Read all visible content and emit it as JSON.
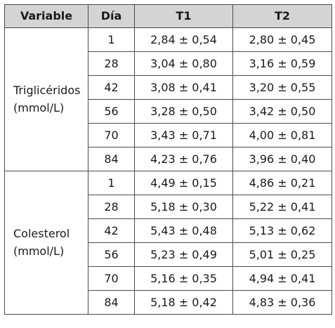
{
  "table": {
    "headers": [
      "Variable",
      "Día",
      "T1",
      "T2"
    ],
    "groups": [
      {
        "name": "Triglicéridos",
        "unit": "(mmol/L)",
        "rows": [
          {
            "dia": "1",
            "t1": "2,84 ± 0,54",
            "t2": "2,80 ± 0,45"
          },
          {
            "dia": "28",
            "t1": "3,04 ± 0,80",
            "t2": "3,16 ± 0,59"
          },
          {
            "dia": "42",
            "t1": "3,08 ± 0,41",
            "t2": "3,20 ± 0,55"
          },
          {
            "dia": "56",
            "t1": "3,28 ± 0,50",
            "t2": "3,42 ± 0,50"
          },
          {
            "dia": "70",
            "t1": "3,43 ± 0,71",
            "t2": "4,00 ± 0,81"
          },
          {
            "dia": "84",
            "t1": "4,23 ± 0,76",
            "t2": "3,96 ± 0,40"
          }
        ]
      },
      {
        "name": "Colesterol",
        "unit": "(mmol/L)",
        "rows": [
          {
            "dia": "1",
            "t1": "4,49 ± 0,15",
            "t2": "4,86 ± 0,21"
          },
          {
            "dia": "28",
            "t1": "5,18 ± 0,30",
            "t2": "5,22 ± 0,41"
          },
          {
            "dia": "42",
            "t1": "5,43 ± 0,48",
            "t2": "5,13 ± 0,62"
          },
          {
            "dia": "56",
            "t1": "5,23 ± 0,49",
            "t2": "5,01 ± 0,25"
          },
          {
            "dia": "70",
            "t1": "5,16 ± 0,35",
            "t2": "4,94 ± 0,41"
          },
          {
            "dia": "84",
            "t1": "5,18 ± 0,42",
            "t2": "4,83 ± 0,36"
          }
        ]
      }
    ]
  },
  "colors": {
    "header_bg": "#d4d4d4",
    "border": "#4a4a4a",
    "text": "#1a1a1a"
  }
}
